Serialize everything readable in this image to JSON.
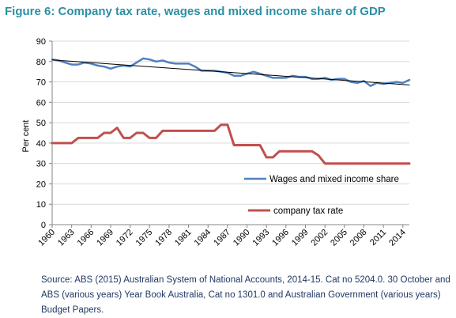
{
  "title": "Figure 6: Company tax rate, wages and mixed income share of GDP",
  "source": "Source: ABS (2015) Australian System of National Accounts, 2014-15. Cat no 5204.0. 30 October and ABS (various years) Year Book Australia, Cat no 1301.0 and Australian Government (various years) Budget Papers.",
  "chart_data": {
    "type": "line",
    "ylabel": "Per cent",
    "ylim": [
      0,
      90
    ],
    "yticks": [
      0,
      10,
      20,
      30,
      40,
      50,
      60,
      70,
      80,
      90
    ],
    "xlim": [
      1960,
      2015
    ],
    "xtick_labels": [
      "1960",
      "1963",
      "1966",
      "1969",
      "1972",
      "1975",
      "1978",
      "1981",
      "1984",
      "1987",
      "1990",
      "1993",
      "1996",
      "1999",
      "2002",
      "2005",
      "2008",
      "2011",
      "2014"
    ],
    "grid": "horizontal",
    "colors": {
      "wages": "#4f81bd",
      "tax": "#c0504d",
      "trend": "#000000"
    },
    "series": [
      {
        "name": "Wages and mixed income share",
        "key": "wages",
        "x": [
          1960,
          1961,
          1962,
          1963,
          1964,
          1965,
          1966,
          1967,
          1968,
          1969,
          1970,
          1971,
          1972,
          1973,
          1974,
          1975,
          1976,
          1977,
          1978,
          1979,
          1980,
          1981,
          1982,
          1983,
          1984,
          1985,
          1986,
          1987,
          1988,
          1989,
          1990,
          1991,
          1992,
          1993,
          1994,
          1995,
          1996,
          1997,
          1998,
          1999,
          2000,
          2001,
          2002,
          2003,
          2004,
          2005,
          2006,
          2007,
          2008,
          2009,
          2010,
          2011,
          2012,
          2013,
          2014,
          2015
        ],
        "values": [
          81,
          80.5,
          79.5,
          78.5,
          78.5,
          79.5,
          79,
          78,
          77.5,
          76.5,
          77.5,
          78,
          77.5,
          79.5,
          81.5,
          81,
          80,
          80.5,
          79.5,
          79,
          79,
          79,
          77.5,
          75.5,
          75.5,
          75.5,
          75,
          74.5,
          73,
          73,
          74,
          75,
          74,
          73,
          72,
          72,
          72,
          73,
          72.5,
          72.5,
          71.5,
          71.5,
          72,
          71,
          71.5,
          71.5,
          70,
          69.5,
          70.5,
          68,
          69.5,
          69,
          69.5,
          70,
          69.5,
          71
        ]
      },
      {
        "name": "company tax rate",
        "key": "tax",
        "x": [
          1960,
          1961,
          1962,
          1963,
          1964,
          1965,
          1966,
          1967,
          1968,
          1969,
          1970,
          1971,
          1972,
          1973,
          1974,
          1975,
          1976,
          1977,
          1978,
          1979,
          1980,
          1981,
          1982,
          1983,
          1984,
          1985,
          1986,
          1987,
          1988,
          1989,
          1990,
          1991,
          1992,
          1993,
          1994,
          1995,
          1996,
          1997,
          1998,
          1999,
          2000,
          2001,
          2002,
          2003,
          2004,
          2005,
          2006,
          2007,
          2008,
          2009,
          2010,
          2011,
          2012,
          2013,
          2014,
          2015
        ],
        "values": [
          40,
          40,
          40,
          40,
          42.5,
          42.5,
          42.5,
          42.5,
          45,
          45,
          47.5,
          42.5,
          42.5,
          45,
          45,
          42.5,
          42.5,
          46,
          46,
          46,
          46,
          46,
          46,
          46,
          46,
          46,
          49,
          49,
          39,
          39,
          39,
          39,
          39,
          33,
          33,
          36,
          36,
          36,
          36,
          36,
          36,
          34,
          30,
          30,
          30,
          30,
          30,
          30,
          30,
          30,
          30,
          30,
          30,
          30,
          30,
          30
        ]
      },
      {
        "name": "",
        "key": "trend",
        "type": "linear-trend",
        "x": [
          1960,
          2015
        ],
        "values": [
          80.8,
          68.5
        ]
      }
    ],
    "legend": [
      {
        "label": "Wages and mixed income share",
        "key": "wages",
        "placement": "right"
      },
      {
        "label": "company tax rate",
        "key": "tax",
        "placement": "right"
      }
    ]
  }
}
